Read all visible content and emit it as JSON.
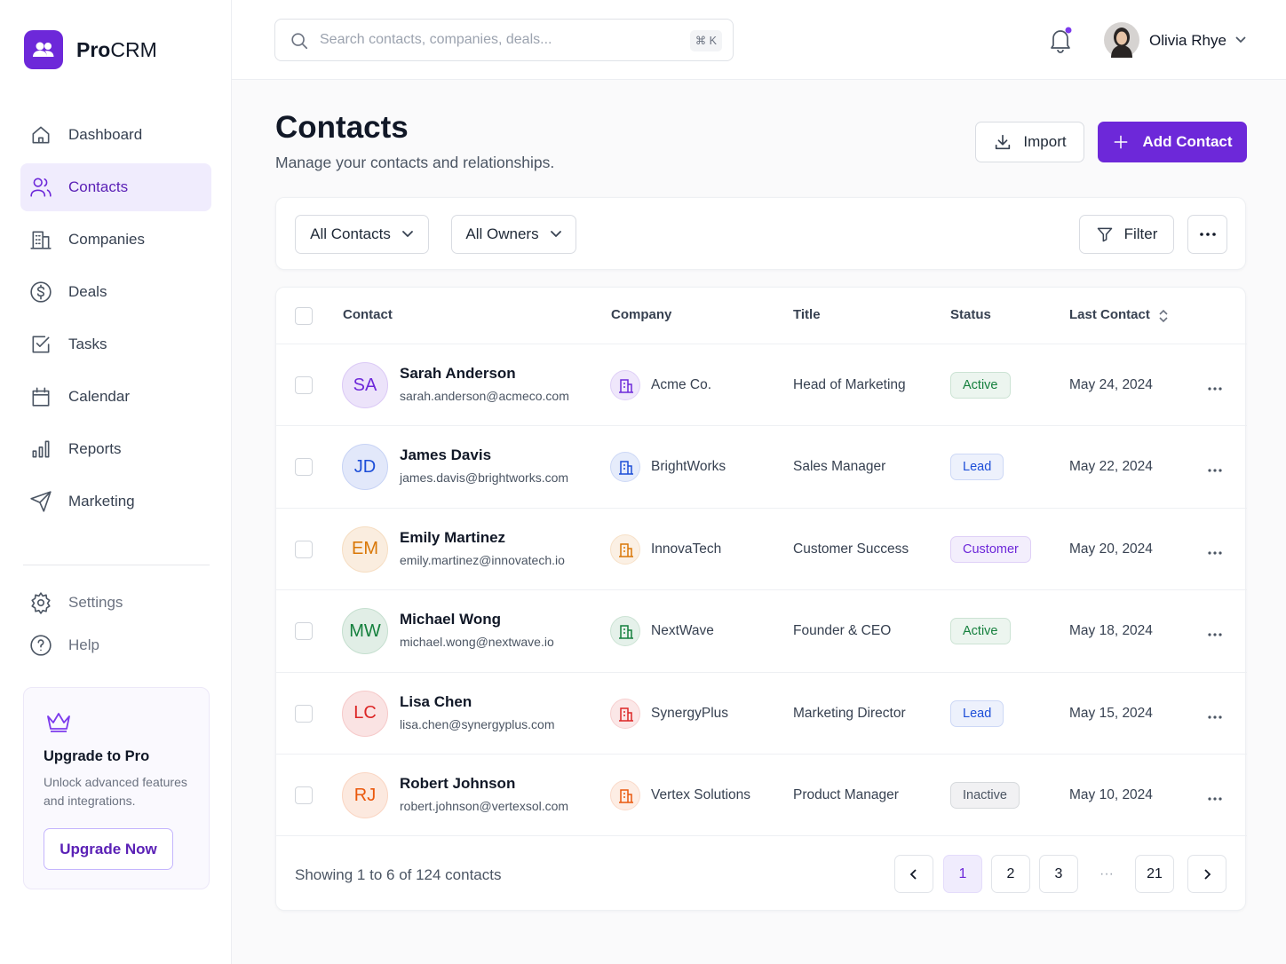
{
  "sidebar": {
    "brand": {
      "prefix": "Pro",
      "suffix": "CRM"
    },
    "nav": [
      {
        "label": "Dashboard"
      },
      {
        "label": "Contacts",
        "active": true
      },
      {
        "label": "Companies"
      },
      {
        "label": "Deals"
      },
      {
        "label": "Tasks"
      },
      {
        "label": "Calendar"
      },
      {
        "label": "Reports"
      },
      {
        "label": "Marketing"
      }
    ],
    "secondary": [
      "Settings",
      "Help"
    ],
    "promo": {
      "title": "Upgrade to Pro",
      "text": "Unlock advanced features and integrations.",
      "button": "Upgrade Now"
    }
  },
  "header": {
    "search_placeholder": "Search contacts, companies, deals...",
    "shortcut": "⌘ K",
    "user": "Olivia Rhye"
  },
  "page": {
    "title": "Contacts",
    "subtitle": "Manage your contacts and relationships.",
    "import": "Import",
    "add": "Add Contact"
  },
  "filters": {
    "contacts": "All Contacts",
    "owners": "All Owners",
    "filter": "Filter"
  },
  "table": {
    "columns": [
      "Contact",
      "Company",
      "Title",
      "Status",
      "Last Contact"
    ],
    "rows": [
      {
        "initials": "SA",
        "name": "Sarah Anderson",
        "email": "sarah.anderson@acmeco.com",
        "company": "Acme Co.",
        "title": "Head of Marketing",
        "status": "Active",
        "last_contact": "May 24, 2024",
        "color": "#6d28d9",
        "status_color": "#15803d"
      },
      {
        "initials": "JD",
        "name": "James Davis",
        "email": "james.davis@brightworks.com",
        "company": "BrightWorks",
        "title": "Sales Manager",
        "status": "Lead",
        "last_contact": "May 22, 2024",
        "color": "#1d4ed8",
        "status_color": "#1d4ed8"
      },
      {
        "initials": "EM",
        "name": "Emily Martinez",
        "email": "emily.martinez@innovatech.io",
        "company": "InnovaTech",
        "title": "Customer Success",
        "status": "Customer",
        "last_contact": "May 20, 2024",
        "color": "#d97706",
        "status_color": "#6d28d9"
      },
      {
        "initials": "MW",
        "name": "Michael Wong",
        "email": "michael.wong@nextwave.io",
        "company": "NextWave",
        "title": "Founder & CEO",
        "status": "Active",
        "last_contact": "May 18, 2024",
        "color": "#15803d",
        "status_color": "#15803d"
      },
      {
        "initials": "LC",
        "name": "Lisa Chen",
        "email": "lisa.chen@synergyplus.com",
        "company": "SynergyPlus",
        "title": "Marketing Director",
        "status": "Lead",
        "last_contact": "May 15, 2024",
        "color": "#dc2626",
        "status_color": "#1d4ed8"
      },
      {
        "initials": "RJ",
        "name": "Robert Johnson",
        "email": "robert.johnson@vertexsol.com",
        "company": "Vertex Solutions",
        "title": "Product Manager",
        "status": "Inactive",
        "last_contact": "May 10, 2024",
        "color": "#ea580c",
        "status_color": "#4b5563"
      }
    ]
  },
  "pagination": {
    "summary": "Showing 1 to 6 of 124 contacts",
    "pages": [
      {
        "label": "1",
        "current": true
      },
      {
        "label": "2"
      },
      {
        "label": "3"
      },
      {
        "label": "···"
      },
      {
        "label": "21"
      }
    ]
  }
}
